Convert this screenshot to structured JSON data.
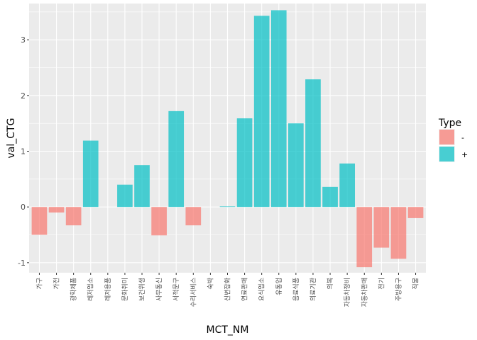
{
  "chart_data": {
    "type": "bar",
    "xlabel": "MCT_NM",
    "ylabel": "val_CTG",
    "ylim": [
      -1.18,
      3.65
    ],
    "yticks": [
      -1,
      0,
      1,
      2,
      3
    ],
    "grid": true,
    "legend": {
      "title": "Type",
      "position": "right",
      "entries": [
        {
          "label": "-",
          "color": "#F8766D"
        },
        {
          "label": "+",
          "color": "#00BFC4"
        }
      ]
    },
    "categories": [
      "가구",
      "가전",
      "광학제품",
      "레저업소",
      "레저용품",
      "문화취미",
      "보건위생",
      "사무통신",
      "서적문구",
      "수리서비스",
      "숙박",
      "신변잡화",
      "연료판매",
      "요식업소",
      "유통업",
      "음료식품",
      "의료기관",
      "의복",
      "자동차정비",
      "자동차판매",
      "전기",
      "주방용구",
      "직물"
    ],
    "values": [
      -0.5,
      -0.1,
      -0.33,
      1.19,
      0,
      0.4,
      0.75,
      -0.51,
      1.72,
      -0.33,
      0,
      0.01,
      1.59,
      3.43,
      3.53,
      1.5,
      2.29,
      0.36,
      0.78,
      -1.08,
      -0.73,
      -0.93,
      -0.2
    ],
    "types": [
      "-",
      "-",
      "-",
      "+",
      "",
      "+",
      "+",
      "-",
      "+",
      "-",
      "",
      "+",
      "+",
      "+",
      "+",
      "+",
      "+",
      "+",
      "+",
      "-",
      "-",
      "-",
      "-"
    ]
  }
}
